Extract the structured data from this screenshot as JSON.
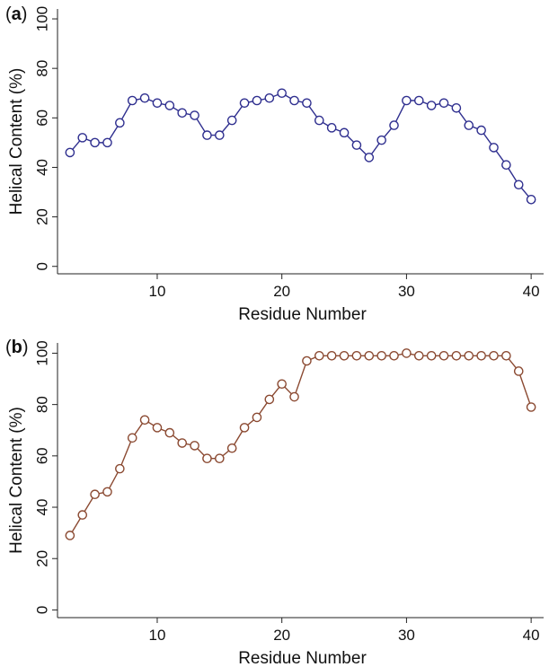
{
  "chart_data": [
    {
      "type": "line",
      "panel_label": "a",
      "xlabel": "Residue Number",
      "ylabel": "Helical Content (%)",
      "xlim": [
        2,
        41
      ],
      "ylim": [
        -3,
        104
      ],
      "xticks": [
        10,
        20,
        30,
        40
      ],
      "yticks": [
        0,
        20,
        40,
        60,
        80,
        100
      ],
      "grid": false,
      "color": "#2f2f8f",
      "x": [
        3,
        4,
        5,
        6,
        7,
        8,
        9,
        10,
        11,
        12,
        13,
        14,
        15,
        16,
        17,
        18,
        19,
        20,
        21,
        22,
        23,
        24,
        25,
        26,
        27,
        28,
        29,
        30,
        31,
        32,
        33,
        34,
        35,
        36,
        37,
        38,
        39,
        40
      ],
      "y": [
        46,
        52,
        50,
        50,
        58,
        67,
        68,
        66,
        65,
        62,
        61,
        53,
        53,
        59,
        66,
        67,
        68,
        70,
        67,
        66,
        59,
        56,
        54,
        49,
        44,
        51,
        57,
        67,
        67,
        65,
        66,
        64,
        57,
        55,
        48,
        41,
        33,
        27
      ]
    },
    {
      "type": "line",
      "panel_label": "b",
      "xlabel": "Residue Number",
      "ylabel": "Helical Content (%)",
      "xlim": [
        2,
        41
      ],
      "ylim": [
        -3,
        104
      ],
      "xticks": [
        10,
        20,
        30,
        40
      ],
      "yticks": [
        0,
        20,
        40,
        60,
        80,
        100
      ],
      "grid": false,
      "color": "#8b4a32",
      "x": [
        3,
        4,
        5,
        6,
        7,
        8,
        9,
        10,
        11,
        12,
        13,
        14,
        15,
        16,
        17,
        18,
        19,
        20,
        21,
        22,
        23,
        24,
        25,
        26,
        27,
        28,
        29,
        30,
        31,
        32,
        33,
        34,
        35,
        36,
        37,
        38,
        39,
        40
      ],
      "y": [
        29,
        37,
        45,
        46,
        55,
        67,
        74,
        71,
        69,
        65,
        64,
        59,
        59,
        63,
        71,
        75,
        82,
        88,
        83,
        97,
        99,
        99,
        99,
        99,
        99,
        99,
        99,
        100,
        99,
        99,
        99,
        99,
        99,
        99,
        99,
        99,
        93,
        79
      ]
    }
  ]
}
